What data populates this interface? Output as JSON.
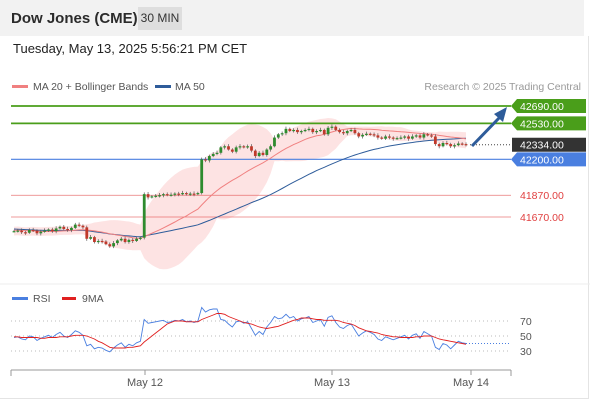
{
  "header": {
    "instrument": "Dow Jones (CME)",
    "timeframe": "30 MIN",
    "datetime": "Tuesday, May 13, 2025 5:56:21 PM CET"
  },
  "legend": {
    "ma20_label": "MA 20 + Bollinger Bands",
    "ma50_label": "MA 50",
    "source": "Research © 2025 Trading Central",
    "colors": {
      "ma20": "#f08080",
      "ma50": "#2e5c9a",
      "bands": "#fddede"
    }
  },
  "chart_data": [
    {
      "type": "candlestick",
      "title": "Dow Jones (CME) 30 MIN",
      "ylim": [
        41450,
        42800
      ],
      "levels": [
        {
          "label": "42690.00",
          "value": 42690,
          "kind": "resistance",
          "color": "#4a9e1a"
        },
        {
          "label": "42530.00",
          "value": 42530,
          "kind": "resistance",
          "color": "#4a9e1a"
        },
        {
          "label": "42334.00",
          "value": 42334,
          "kind": "last_price",
          "color": "#333333"
        },
        {
          "label": "42200.00",
          "value": 42200,
          "kind": "pivot",
          "color": "#4a7fe0"
        },
        {
          "label": "41870.00",
          "value": 41870,
          "kind": "support",
          "color": "#e04040"
        },
        {
          "label": "41670.00",
          "value": 41670,
          "kind": "support",
          "color": "#e04040"
        }
      ],
      "x_ticks": [
        "May 12",
        "May 13",
        "May 14"
      ],
      "closes": [
        41540,
        41545,
        41530,
        41525,
        41550,
        41545,
        41520,
        41535,
        41545,
        41555,
        41540,
        41565,
        41580,
        41560,
        41550,
        41570,
        41600,
        41590,
        41575,
        41470,
        41485,
        41440,
        41450,
        41445,
        41420,
        41400,
        41430,
        41455,
        41470,
        41440,
        41460,
        41450,
        41470,
        41480,
        41880,
        41850,
        41860,
        41865,
        41870,
        41880,
        41870,
        41875,
        41885,
        41880,
        41890,
        41880,
        41885,
        41880,
        41890,
        42200,
        42190,
        42230,
        42250,
        42260,
        42310,
        42320,
        42290,
        42270,
        42310,
        42320,
        42310,
        42320,
        42280,
        42230,
        42260,
        42240,
        42290,
        42320,
        42400,
        42430,
        42440,
        42480,
        42460,
        42470,
        42450,
        42460,
        42470,
        42480,
        42450,
        42460,
        42470,
        42430,
        42490,
        42500,
        42470,
        42450,
        42440,
        42460,
        42470,
        42440,
        42410,
        42425,
        42435,
        42430,
        42420,
        42400,
        42390,
        42410,
        42400,
        42390,
        42395,
        42400,
        42410,
        42390,
        42410,
        42420,
        42400,
        42430,
        42420,
        42410,
        42340,
        42320,
        42350,
        42340,
        42320,
        42330,
        42345,
        42340,
        42334
      ],
      "ma20": [
        41548,
        41548,
        41546,
        41545,
        41544,
        41543,
        41540,
        41538,
        41537,
        41537,
        41537,
        41538,
        41540,
        41542,
        41543,
        41545,
        41548,
        41551,
        41553,
        41550,
        41547,
        41542,
        41537,
        41531,
        41524,
        41516,
        41510,
        41504,
        41498,
        41492,
        41486,
        41479,
        41475,
        41473,
        41489,
        41505,
        41521,
        41536,
        41552,
        41570,
        41587,
        41606,
        41624,
        41644,
        41662,
        41680,
        41702,
        41722,
        41743,
        41780,
        41816,
        41852,
        41883,
        41913,
        41939,
        41962,
        41985,
        42007,
        42027,
        42048,
        42070,
        42092,
        42112,
        42131,
        42150,
        42168,
        42189,
        42210,
        42235,
        42257,
        42279,
        42300,
        42317,
        42335,
        42351,
        42367,
        42383,
        42396,
        42406,
        42416,
        42421,
        42431,
        42441,
        42451,
        42461,
        42468,
        42474,
        42480,
        42484,
        42482,
        42480,
        42478,
        42477,
        42476,
        42474,
        42471,
        42467,
        42464,
        42461,
        42459,
        42456,
        42453,
        42451,
        42447,
        42444,
        42441,
        42438,
        42436,
        42433,
        42431,
        42426,
        42420,
        42415,
        42410,
        42405,
        42401,
        42399,
        42394,
        42388
      ],
      "ma50": [
        41560,
        41558,
        41556,
        41554,
        41552,
        41551,
        41549,
        41548,
        41547,
        41547,
        41546,
        41546,
        41547,
        41547,
        41546,
        41546,
        41547,
        41547,
        41547,
        41543,
        41540,
        41535,
        41530,
        41525,
        41520,
        41514,
        41510,
        41506,
        41503,
        41499,
        41496,
        41493,
        41490,
        41488,
        41496,
        41503,
        41510,
        41517,
        41524,
        41531,
        41538,
        41545,
        41552,
        41560,
        41567,
        41575,
        41583,
        41590,
        41598,
        41611,
        41625,
        41639,
        41653,
        41668,
        41683,
        41698,
        41713,
        41727,
        41742,
        41757,
        41772,
        41787,
        41802,
        41816,
        41830,
        41845,
        41860,
        41876,
        41894,
        41913,
        41932,
        41952,
        41971,
        41990,
        42008,
        42026,
        42044,
        42062,
        42079,
        42096,
        42112,
        42127,
        42142,
        42158,
        42173,
        42187,
        42201,
        42215,
        42228,
        42240,
        42251,
        42262,
        42272,
        42282,
        42291,
        42299,
        42307,
        42315,
        42322,
        42328,
        42334,
        42340,
        42345,
        42350,
        42355,
        42360,
        42364,
        42368,
        42372,
        42376,
        42378,
        42380,
        42382,
        42384,
        42386,
        42388,
        42390,
        42392,
        42393
      ]
    },
    {
      "type": "line",
      "title": "RSI",
      "ylim": [
        10,
        90
      ],
      "y_ticks": [
        70,
        50,
        30
      ],
      "series": [
        {
          "name": "RSI",
          "color": "#4a7fe0",
          "values": [
            48,
            49,
            46,
            45,
            50,
            49,
            44,
            47,
            49,
            51,
            48,
            52,
            55,
            50,
            48,
            52,
            57,
            55,
            51,
            37,
            39,
            33,
            35,
            34,
            31,
            29,
            34,
            38,
            41,
            35,
            39,
            37,
            41,
            43,
            72,
            67,
            68,
            69,
            70,
            71,
            68,
            69,
            71,
            70,
            72,
            69,
            70,
            68,
            70,
            88,
            82,
            85,
            86,
            86,
            72,
            71,
            66,
            62,
            69,
            70,
            67,
            69,
            60,
            51,
            56,
            52,
            62,
            68,
            76,
            73,
            74,
            79,
            74,
            76,
            70,
            73,
            74,
            76,
            68,
            70,
            72,
            63,
            75,
            77,
            68,
            62,
            60,
            64,
            66,
            58,
            50,
            54,
            57,
            55,
            52,
            46,
            44,
            49,
            47,
            45,
            47,
            49,
            51,
            46,
            51,
            53,
            47,
            56,
            53,
            50,
            35,
            32,
            40,
            38,
            33,
            38,
            43,
            41,
            40
          ]
        },
        {
          "name": "9MA",
          "color": "#e02020",
          "values": [
            49,
            49,
            48,
            48,
            48,
            48,
            48,
            47,
            47,
            48,
            48,
            48,
            49,
            49,
            49,
            50,
            51,
            51,
            51,
            50,
            48,
            46,
            43,
            41,
            38,
            35,
            34,
            34,
            34,
            34,
            35,
            35,
            36,
            37,
            42,
            46,
            50,
            54,
            58,
            62,
            66,
            68,
            70,
            70,
            70,
            69,
            69,
            69,
            69,
            72,
            74,
            76,
            78,
            80,
            80,
            79,
            76,
            74,
            72,
            70,
            68,
            67,
            66,
            64,
            62,
            61,
            60,
            61,
            62,
            63,
            65,
            67,
            69,
            71,
            72,
            74,
            74,
            74,
            73,
            72,
            72,
            71,
            71,
            71,
            71,
            70,
            68,
            67,
            66,
            64,
            61,
            59,
            57,
            56,
            55,
            54,
            52,
            51,
            50,
            49,
            49,
            48,
            48,
            48,
            48,
            49,
            49,
            50,
            50,
            50,
            48,
            46,
            45,
            44,
            43,
            42,
            41,
            40,
            39
          ]
        }
      ]
    }
  ]
}
